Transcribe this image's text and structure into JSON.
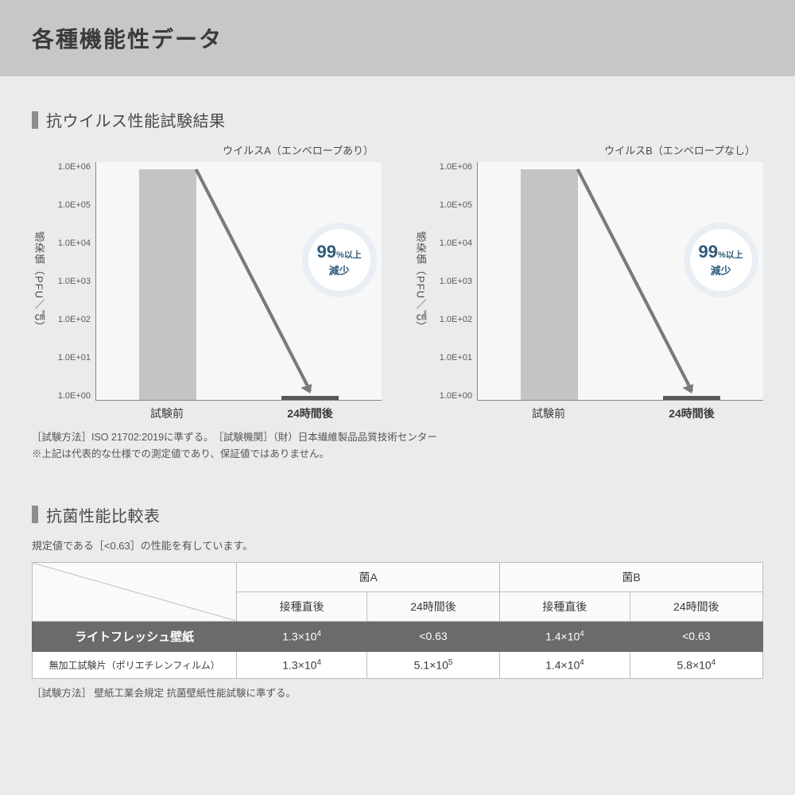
{
  "page": {
    "title": "各種機能性データ",
    "background": "#eaebec",
    "header_bg": "#c6c7c8"
  },
  "antivirus": {
    "title": "抗ウイルス性能試験結果",
    "ylabel": "感染価（PFU／㎠）",
    "ylim_log": [
      0,
      6
    ],
    "yticks": [
      "1.0E+06",
      "1.0E+05",
      "1.0E+04",
      "1.0E+03",
      "1.0E+02",
      "1.0E+01",
      "1.0E+00"
    ],
    "xticks": [
      "試験前",
      "24時間後"
    ],
    "bar_colors": [
      "#c3c4c5",
      "#585858"
    ],
    "bar_widths": [
      0.4,
      0.4
    ],
    "plot_bg": "#f7f7f8",
    "axis_color": "#888888",
    "arrow_color": "#7a7a7a",
    "callout": {
      "text_big": "99",
      "text_pct": "%以上",
      "text_sub": "減少",
      "bg": "#ffffff",
      "color": "#2e5a7a",
      "diameter": 78
    },
    "charts": [
      {
        "title": "ウイルスA（エンベロープあり）",
        "values_log": [
          5.82,
          0.1
        ]
      },
      {
        "title": "ウイルスB（エンベロープなし）",
        "values_log": [
          5.82,
          0.1
        ]
      }
    ],
    "note1": "［試験方法］ISO 21702:2019に準ずる。　［試験機関］（財）日本繊維製品品質技術センター",
    "note2": "※上記は代表的な仕様での測定値であり、保証値ではありません。"
  },
  "antibac": {
    "title": "抗菌性能比較表",
    "subnote": "規定値である［<0.63］の性能を有しています。",
    "col_groups": [
      "菌A",
      "菌B"
    ],
    "sub_cols": [
      "接種直後",
      "24時間後"
    ],
    "rows": [
      {
        "label": "ライトフレッシュ壁紙",
        "highlight": true,
        "cells": [
          "1.3×10⁴",
          "<0.63",
          "1.4×10⁴",
          "<0.63"
        ]
      },
      {
        "label": "無加工試験片（ポリエチレンフィルム）",
        "highlight": false,
        "label_small": true,
        "cells": [
          "1.3×10⁴",
          "5.1×10⁵",
          "1.4×10⁴",
          "5.8×10⁴"
        ]
      }
    ],
    "footer": "［試験方法］ 壁紙工業会規定 抗菌壁紙性能試験に準ずる。",
    "header_bg": "#fafafa",
    "highlight_bg": "#6a6b6c",
    "highlight_color": "#ffffff",
    "border_color": "#bdbdbd"
  }
}
